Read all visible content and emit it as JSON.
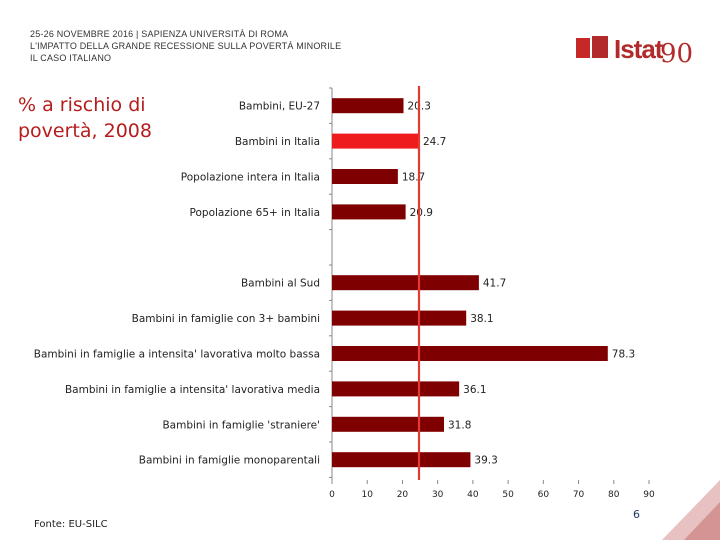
{
  "header": {
    "line1": "25-26 NOVEMBRE 2016 | SAPIENZA UNIVERSITÀ DI ROMA",
    "line2": "L'IMPATTO DELLA GRANDE RECESSIONE SULLA POVERTÁ MINORILE",
    "line3": "IL CASO ITALIANO"
  },
  "logo": {
    "text": "Istat",
    "badge": "90"
  },
  "side_title": "% a rischio di povertà, 2008",
  "source": "Fonte: EU-SILC",
  "page_number": "6",
  "colors": {
    "bar": "#7f0000",
    "highlight": "#ee1c1c",
    "refline": "#e53935",
    "title": "#b71c1c",
    "logo": "#b22a2a"
  },
  "chart_data": {
    "type": "bar",
    "orientation": "horizontal",
    "title": "% a rischio di povertà, 2008",
    "categories": [
      "Bambini, EU-27",
      "Bambini in Italia",
      "Popolazione intera in Italia",
      "Popolazione 65+ in Italia",
      "",
      "Bambini al Sud",
      "Bambini in famiglie con 3+ bambini",
      "Bambini in famiglie a intensita' lavorativa molto bassa",
      "Bambini in famiglie a intensita' lavorativa media",
      "Bambini in famiglie 'straniere'",
      "Bambini in famiglie monoparentali"
    ],
    "values": [
      20.3,
      24.7,
      18.7,
      20.9,
      null,
      41.7,
      38.1,
      78.3,
      36.1,
      31.8,
      39.3
    ],
    "value_labels": [
      "20.3",
      "24.7",
      "18.7",
      "20.9",
      "",
      "41.7",
      "38.1",
      "78.3",
      "36.1",
      "31.8",
      "39.3"
    ],
    "highlight_index": 1,
    "reference_line": 24.7,
    "xlim": [
      0,
      90
    ],
    "xticks": [
      "0",
      "10",
      "20",
      "30",
      "40",
      "50",
      "60",
      "70",
      "80",
      "90"
    ],
    "xlabel": "",
    "ylabel": ""
  }
}
